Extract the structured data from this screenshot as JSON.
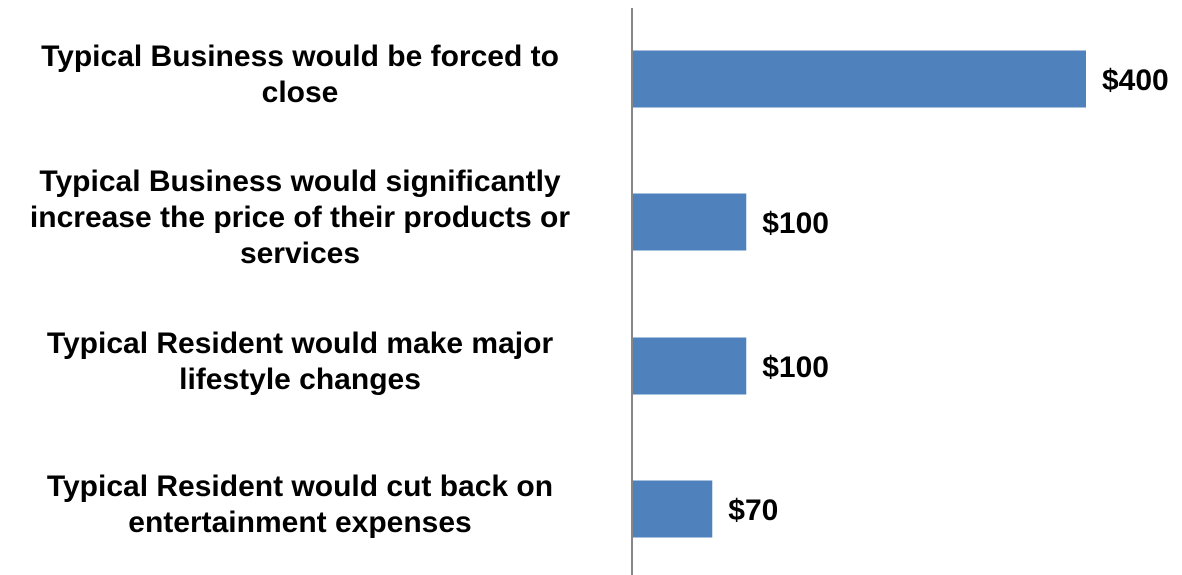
{
  "chart_data": {
    "type": "bar",
    "orientation": "horizontal",
    "categories": [
      "Typical Business would be forced to close",
      "Typical Business would significantly increase the price of their products or services",
      "Typical Resident would make major lifestyle changes",
      "Typical Resident would cut back on entertainment expenses"
    ],
    "values": [
      400,
      100,
      100,
      70
    ],
    "value_labels": [
      "$400",
      "$100",
      "$100",
      "$70"
    ],
    "xlim": [
      0,
      420
    ],
    "grid": false,
    "legend": "none",
    "colors": {
      "bar": "#4f81bd",
      "axis": "#868686"
    }
  }
}
